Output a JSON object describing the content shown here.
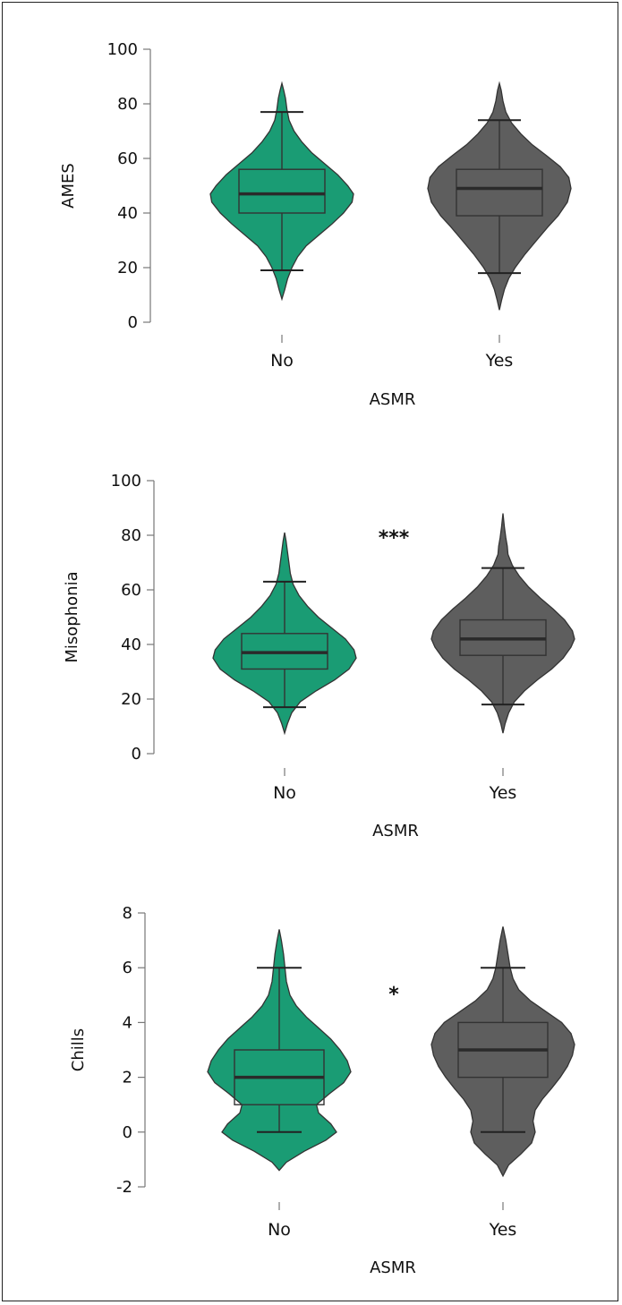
{
  "chart_data": [
    {
      "type": "violin",
      "xlabel": "ASMR",
      "ylabel": "AMES",
      "categories": [
        "No",
        "Yes"
      ],
      "yticks": [
        "0",
        "20",
        "40",
        "60",
        "80",
        "100"
      ],
      "ylim": [
        0,
        100
      ],
      "significance": "",
      "groups": [
        {
          "name": "No",
          "color": "#1a9c74",
          "box": {
            "whisker_low": 19,
            "q1": 40,
            "median": 47,
            "q3": 56,
            "whisker_high": 77
          },
          "density": [
            [
              8.5,
              0
            ],
            [
              12,
              0.04
            ],
            [
              16,
              0.08
            ],
            [
              20,
              0.14
            ],
            [
              24,
              0.22
            ],
            [
              28,
              0.34
            ],
            [
              32,
              0.52
            ],
            [
              36,
              0.7
            ],
            [
              40,
              0.86
            ],
            [
              44,
              0.98
            ],
            [
              47,
              1.0
            ],
            [
              50,
              0.92
            ],
            [
              54,
              0.78
            ],
            [
              58,
              0.6
            ],
            [
              62,
              0.42
            ],
            [
              66,
              0.28
            ],
            [
              70,
              0.17
            ],
            [
              74,
              0.1
            ],
            [
              78,
              0.07
            ],
            [
              82,
              0.05
            ],
            [
              85,
              0.025
            ],
            [
              87.5,
              0
            ]
          ]
        },
        {
          "name": "Yes",
          "color": "#5e5e5e",
          "box": {
            "whisker_low": 18,
            "q1": 39,
            "median": 49,
            "q3": 56,
            "whisker_high": 74
          },
          "density": [
            [
              4.5,
              0
            ],
            [
              8,
              0.03
            ],
            [
              12,
              0.07
            ],
            [
              16,
              0.13
            ],
            [
              20,
              0.22
            ],
            [
              25,
              0.36
            ],
            [
              30,
              0.52
            ],
            [
              35,
              0.68
            ],
            [
              39,
              0.82
            ],
            [
              44,
              0.95
            ],
            [
              49,
              1.0
            ],
            [
              53,
              0.97
            ],
            [
              57,
              0.85
            ],
            [
              61,
              0.66
            ],
            [
              65,
              0.46
            ],
            [
              69,
              0.3
            ],
            [
              73,
              0.17
            ],
            [
              77,
              0.09
            ],
            [
              81,
              0.05
            ],
            [
              85,
              0.025
            ],
            [
              87.5,
              0
            ]
          ]
        }
      ]
    },
    {
      "type": "violin",
      "xlabel": "ASMR",
      "ylabel": "Misophonia",
      "categories": [
        "No",
        "Yes"
      ],
      "yticks": [
        "0",
        "20",
        "40",
        "60",
        "80",
        "100"
      ],
      "ylim": [
        0,
        100
      ],
      "significance": "***",
      "groups": [
        {
          "name": "No",
          "color": "#1a9c74",
          "box": {
            "whisker_low": 17,
            "q1": 31,
            "median": 37,
            "q3": 44,
            "whisker_high": 63
          },
          "density": [
            [
              7.5,
              0
            ],
            [
              11,
              0.04
            ],
            [
              15,
              0.1
            ],
            [
              19,
              0.22
            ],
            [
              23,
              0.44
            ],
            [
              27,
              0.7
            ],
            [
              31,
              0.9
            ],
            [
              35,
              1.0
            ],
            [
              38,
              0.97
            ],
            [
              42,
              0.85
            ],
            [
              46,
              0.66
            ],
            [
              50,
              0.47
            ],
            [
              54,
              0.32
            ],
            [
              58,
              0.2
            ],
            [
              62,
              0.12
            ],
            [
              66,
              0.08
            ],
            [
              70,
              0.06
            ],
            [
              74,
              0.04
            ],
            [
              78,
              0.02
            ],
            [
              81,
              0
            ]
          ]
        },
        {
          "name": "Yes",
          "color": "#5e5e5e",
          "box": {
            "whisker_low": 18,
            "q1": 36,
            "median": 42,
            "q3": 49,
            "whisker_high": 68
          },
          "density": [
            [
              7.5,
              0
            ],
            [
              11,
              0.03
            ],
            [
              15,
              0.08
            ],
            [
              19,
              0.16
            ],
            [
              23,
              0.3
            ],
            [
              27,
              0.48
            ],
            [
              31,
              0.68
            ],
            [
              35,
              0.84
            ],
            [
              39,
              0.95
            ],
            [
              42,
              1.0
            ],
            [
              45,
              0.97
            ],
            [
              49,
              0.86
            ],
            [
              53,
              0.7
            ],
            [
              57,
              0.52
            ],
            [
              61,
              0.36
            ],
            [
              65,
              0.23
            ],
            [
              69,
              0.13
            ],
            [
              73,
              0.07
            ],
            [
              76,
              0.06
            ],
            [
              79,
              0.04
            ],
            [
              83,
              0.02
            ],
            [
              88,
              0
            ]
          ]
        }
      ]
    },
    {
      "type": "violin",
      "xlabel": "ASMR",
      "ylabel": "Chills",
      "categories": [
        "No",
        "Yes"
      ],
      "yticks": [
        "-2",
        "0",
        "2",
        "4",
        "6",
        "8"
      ],
      "ylim": [
        -2,
        8
      ],
      "significance": "*",
      "groups": [
        {
          "name": "No",
          "color": "#1a9c74",
          "box": {
            "whisker_low": 0,
            "q1": 1,
            "median": 2,
            "q3": 3,
            "whisker_high": 6
          },
          "density": [
            [
              -1.4,
              0
            ],
            [
              -1.1,
              0.1
            ],
            [
              -0.7,
              0.35
            ],
            [
              -0.3,
              0.65
            ],
            [
              0,
              0.8
            ],
            [
              0.3,
              0.72
            ],
            [
              0.7,
              0.55
            ],
            [
              1.0,
              0.52
            ],
            [
              1.4,
              0.7
            ],
            [
              1.8,
              0.9
            ],
            [
              2.2,
              1.0
            ],
            [
              2.6,
              0.95
            ],
            [
              3.0,
              0.85
            ],
            [
              3.4,
              0.72
            ],
            [
              3.8,
              0.55
            ],
            [
              4.2,
              0.38
            ],
            [
              4.6,
              0.24
            ],
            [
              5.0,
              0.15
            ],
            [
              5.5,
              0.1
            ],
            [
              6.0,
              0.08
            ],
            [
              6.5,
              0.06
            ],
            [
              7.0,
              0.03
            ],
            [
              7.4,
              0
            ]
          ]
        },
        {
          "name": "Yes",
          "color": "#5e5e5e",
          "box": {
            "whisker_low": 0,
            "q1": 2,
            "median": 3,
            "q3": 4,
            "whisker_high": 6
          },
          "density": [
            [
              -1.6,
              0
            ],
            [
              -1.2,
              0.08
            ],
            [
              -0.8,
              0.25
            ],
            [
              -0.4,
              0.4
            ],
            [
              0,
              0.45
            ],
            [
              0.4,
              0.42
            ],
            [
              0.8,
              0.45
            ],
            [
              1.2,
              0.55
            ],
            [
              1.6,
              0.68
            ],
            [
              2.0,
              0.8
            ],
            [
              2.4,
              0.9
            ],
            [
              2.8,
              0.97
            ],
            [
              3.2,
              1.0
            ],
            [
              3.6,
              0.95
            ],
            [
              4.0,
              0.82
            ],
            [
              4.4,
              0.6
            ],
            [
              4.8,
              0.38
            ],
            [
              5.2,
              0.22
            ],
            [
              5.6,
              0.14
            ],
            [
              6.0,
              0.1
            ],
            [
              6.5,
              0.07
            ],
            [
              7.0,
              0.04
            ],
            [
              7.5,
              0
            ]
          ]
        }
      ]
    }
  ]
}
